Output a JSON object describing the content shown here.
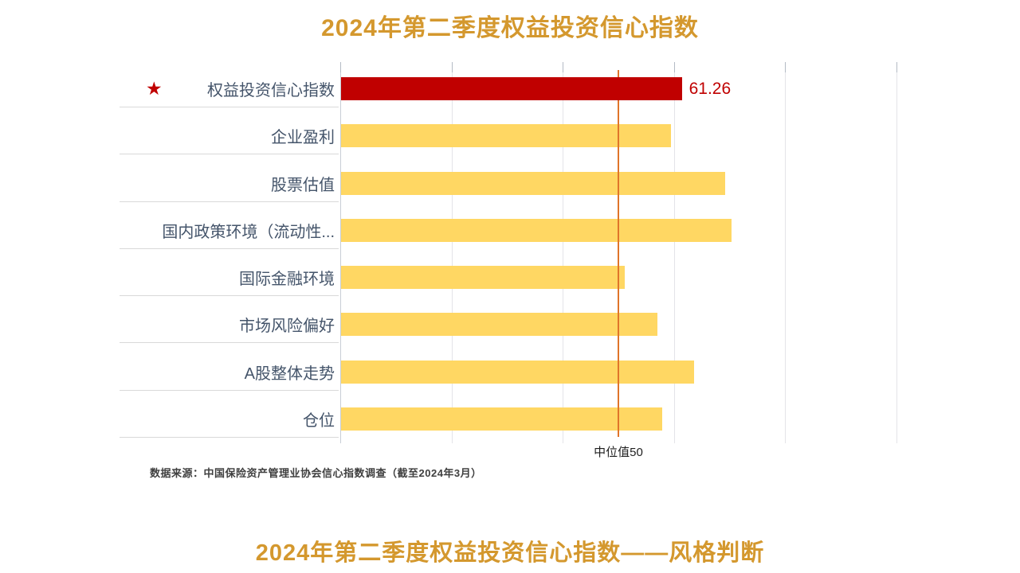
{
  "page": {
    "top_title": "2024年第二季度权益投资信心指数",
    "bottom_title": "2024年第二季度权益投资信心指数——风格判断",
    "source_note": "数据来源：中国保险资产管理业协会信心指数调查（截至2024年3月）"
  },
  "colors": {
    "title_gold": "#D4982E",
    "highlight_red": "#C00000",
    "bar_yellow": "#FFD763",
    "median_orange": "#E0742A",
    "category_label": "#44546A",
    "gridline": "#E4E4E8",
    "note_gray": "#3F3F3F"
  },
  "icons": {
    "highlight_star": "★"
  },
  "chart_data": {
    "type": "bar",
    "orientation": "horizontal",
    "title": "2024年第二季度权益投资信心指数",
    "categories": [
      "权益投资信心指数",
      "企业盈利",
      "股票估值",
      "国内政策环境（流动性...",
      "国际金融环境",
      "市场风险偏好",
      "A股整体走势",
      "仓位"
    ],
    "values": [
      61.26,
      59.3,
      69.1,
      70.2,
      51.0,
      56.9,
      63.5,
      57.7
    ],
    "value_labels": [
      "61.26",
      "",
      "",
      "",
      "",
      "",
      "",
      ""
    ],
    "highlight_index": 0,
    "highlight_marker": "star",
    "xlim": [
      0,
      100
    ],
    "grid_interval": 20,
    "axis_tick_labels_visible": false,
    "legend": "none",
    "median_line": {
      "value": 50,
      "label": "中位值50"
    },
    "bar_color": "#FFD763",
    "highlight_bar_color": "#C00000",
    "median_line_color": "#E0742A"
  }
}
